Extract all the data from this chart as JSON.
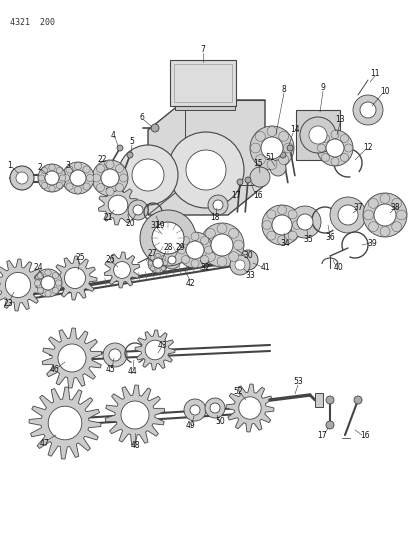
{
  "title": "4321  200",
  "bg_color": "#f5f5f0",
  "line_color": "#444444",
  "fig_width": 4.08,
  "fig_height": 5.33,
  "dpi": 100,
  "label_fs": 5.5,
  "thin_lw": 0.5,
  "med_lw": 0.8,
  "thick_lw": 1.2,
  "part_color": "#cccccc",
  "dark_color": "#333333",
  "mid_gray": "#888888",
  "light_gray": "#dddddd"
}
